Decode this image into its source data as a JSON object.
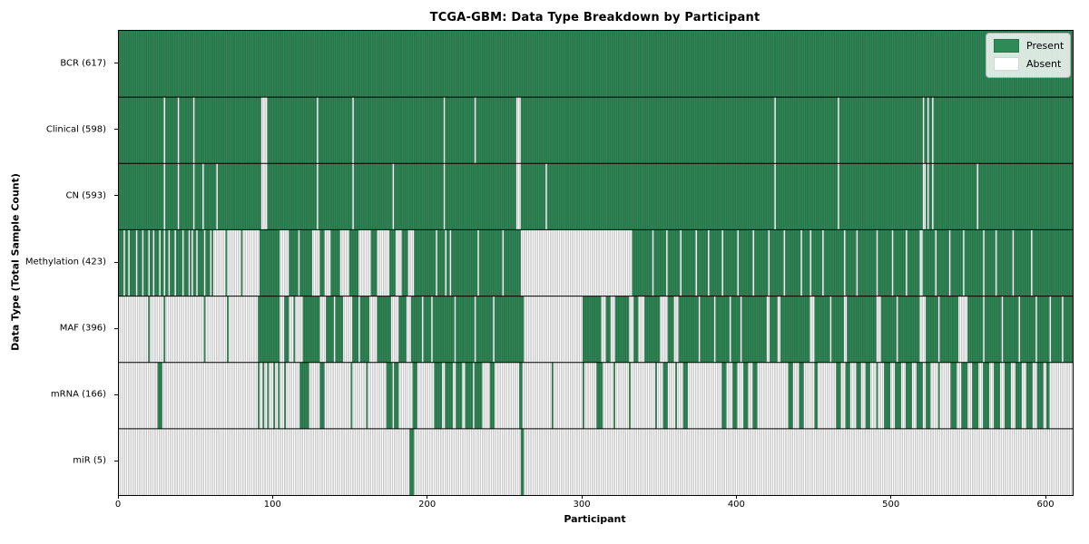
{
  "chart_data": {
    "type": "heatmap",
    "title": "TCGA-GBM: Data Type Breakdown by Participant",
    "xlabel": "Participant",
    "ylabel": "Data Type (Total Sample Count)",
    "x_ticks": [
      0,
      100,
      200,
      300,
      400,
      500,
      600
    ],
    "xlim": [
      0,
      617
    ],
    "n_participants": 617,
    "grid": false,
    "legend": {
      "position": "upper right",
      "present": "Present",
      "absent": "Absent"
    },
    "colors": {
      "present": "#2e8b57",
      "absent": "#ffffff",
      "bar_edge": "rgba(35,35,35,0.42)",
      "row_divider": "#000000",
      "frame": "#000000"
    },
    "rows": [
      {
        "data_type": "BCR",
        "count": 617,
        "label": "BCR (617)",
        "default": "present",
        "inverted_segments": []
      },
      {
        "data_type": "Clinical",
        "count": 598,
        "label": "Clinical (598)",
        "default": "present",
        "inverted_segments": [
          [
            29,
            30
          ],
          [
            38,
            39
          ],
          [
            48,
            49
          ],
          [
            92,
            96
          ],
          [
            128,
            129
          ],
          [
            151,
            152
          ],
          [
            210,
            211
          ],
          [
            230,
            231
          ],
          [
            257,
            260
          ],
          [
            424,
            425
          ],
          [
            465,
            466
          ],
          [
            520,
            521
          ],
          [
            523,
            524
          ],
          [
            526,
            527
          ]
        ]
      },
      {
        "data_type": "CN",
        "count": 593,
        "label": "CN (593)",
        "default": "present",
        "inverted_segments": [
          [
            29,
            30
          ],
          [
            38,
            39
          ],
          [
            48,
            49
          ],
          [
            54,
            55
          ],
          [
            63,
            64
          ],
          [
            92,
            96
          ],
          [
            128,
            129
          ],
          [
            151,
            152
          ],
          [
            177,
            178
          ],
          [
            210,
            211
          ],
          [
            257,
            260
          ],
          [
            276,
            277
          ],
          [
            424,
            425
          ],
          [
            465,
            466
          ],
          [
            520,
            522
          ],
          [
            523,
            524
          ],
          [
            526,
            527
          ],
          [
            555,
            556
          ]
        ]
      },
      {
        "data_type": "Methylation",
        "count": 423,
        "label": "Methylation (423)",
        "default": "present",
        "inverted_segments": [
          [
            3,
            4
          ],
          [
            6,
            7
          ],
          [
            11,
            12
          ],
          [
            15,
            16
          ],
          [
            19,
            20
          ],
          [
            22,
            23
          ],
          [
            26,
            27
          ],
          [
            29,
            30
          ],
          [
            32,
            33
          ],
          [
            36,
            37
          ],
          [
            41,
            42
          ],
          [
            45,
            46
          ],
          [
            47,
            48
          ],
          [
            50,
            51
          ],
          [
            55,
            56
          ],
          [
            59,
            60
          ],
          [
            61,
            69
          ],
          [
            70,
            79
          ],
          [
            80,
            91
          ],
          [
            104,
            110
          ],
          [
            116,
            117
          ],
          [
            125,
            130
          ],
          [
            133,
            137
          ],
          [
            143,
            149
          ],
          [
            155,
            163
          ],
          [
            167,
            175
          ],
          [
            179,
            183
          ],
          [
            187,
            191
          ],
          [
            205,
            206
          ],
          [
            211,
            212
          ],
          [
            214,
            215
          ],
          [
            232,
            233
          ],
          [
            248,
            249
          ],
          [
            260,
            332
          ],
          [
            345,
            346
          ],
          [
            354,
            355
          ],
          [
            363,
            364
          ],
          [
            373,
            374
          ],
          [
            381,
            382
          ],
          [
            390,
            391
          ],
          [
            400,
            401
          ],
          [
            410,
            411
          ],
          [
            420,
            421
          ],
          [
            430,
            431
          ],
          [
            441,
            442
          ],
          [
            447,
            448
          ],
          [
            455,
            456
          ],
          [
            469,
            470
          ],
          [
            477,
            478
          ],
          [
            490,
            491
          ],
          [
            500,
            501
          ],
          [
            509,
            510
          ],
          [
            518,
            520
          ],
          [
            528,
            529
          ],
          [
            537,
            538
          ],
          [
            546,
            547
          ],
          [
            559,
            560
          ],
          [
            567,
            568
          ],
          [
            578,
            579
          ],
          [
            590,
            591
          ]
        ]
      },
      {
        "data_type": "MAF",
        "count": 396,
        "label": "MAF (396)",
        "default": "present",
        "inverted_segments": [
          [
            0,
            19
          ],
          [
            20,
            29
          ],
          [
            30,
            55
          ],
          [
            56,
            70
          ],
          [
            71,
            90
          ],
          [
            104,
            107
          ],
          [
            110,
            113
          ],
          [
            114,
            119
          ],
          [
            130,
            134
          ],
          [
            139,
            140
          ],
          [
            145,
            151
          ],
          [
            155,
            156
          ],
          [
            162,
            167
          ],
          [
            176,
            181
          ],
          [
            186,
            189
          ],
          [
            196,
            197
          ],
          [
            202,
            203
          ],
          [
            217,
            218
          ],
          [
            230,
            231
          ],
          [
            242,
            243
          ],
          [
            262,
            300
          ],
          [
            312,
            315
          ],
          [
            318,
            321
          ],
          [
            330,
            333
          ],
          [
            336,
            340
          ],
          [
            350,
            355
          ],
          [
            359,
            362
          ],
          [
            375,
            376
          ],
          [
            385,
            386
          ],
          [
            395,
            396
          ],
          [
            402,
            403
          ],
          [
            419,
            421
          ],
          [
            426,
            428
          ],
          [
            447,
            450
          ],
          [
            460,
            461
          ],
          [
            469,
            471
          ],
          [
            490,
            493
          ],
          [
            503,
            504
          ],
          [
            518,
            522
          ],
          [
            530,
            531
          ],
          [
            543,
            549
          ],
          [
            559,
            560
          ],
          [
            571,
            572
          ],
          [
            582,
            583
          ],
          [
            593,
            594
          ],
          [
            602,
            603
          ],
          [
            610,
            611
          ]
        ]
      },
      {
        "data_type": "mRNA",
        "count": 166,
        "label": "mRNA (166)",
        "default": "absent",
        "inverted_segments": [
          [
            25,
            28
          ],
          [
            90,
            91
          ],
          [
            93,
            94
          ],
          [
            96,
            97
          ],
          [
            100,
            101
          ],
          [
            103,
            104
          ],
          [
            107,
            108
          ],
          [
            117,
            123
          ],
          [
            130,
            133
          ],
          [
            150,
            151
          ],
          [
            160,
            161
          ],
          [
            173,
            177
          ],
          [
            178,
            181
          ],
          [
            190,
            193
          ],
          [
            204,
            209
          ],
          [
            211,
            216
          ],
          [
            218,
            222
          ],
          [
            224,
            229
          ],
          [
            230,
            235
          ],
          [
            240,
            243
          ],
          [
            259,
            261
          ],
          [
            280,
            281
          ],
          [
            300,
            301
          ],
          [
            309,
            313
          ],
          [
            320,
            321
          ],
          [
            330,
            331
          ],
          [
            347,
            348
          ],
          [
            352,
            355
          ],
          [
            360,
            361
          ],
          [
            365,
            368
          ],
          [
            390,
            393
          ],
          [
            397,
            400
          ],
          [
            404,
            407
          ],
          [
            410,
            413
          ],
          [
            433,
            436
          ],
          [
            440,
            443
          ],
          [
            450,
            452
          ],
          [
            464,
            467
          ],
          [
            470,
            473
          ],
          [
            477,
            480
          ],
          [
            483,
            486
          ],
          [
            490,
            491
          ],
          [
            495,
            499
          ],
          [
            502,
            506
          ],
          [
            509,
            513
          ],
          [
            516,
            520
          ],
          [
            522,
            525
          ],
          [
            530,
            531
          ],
          [
            538,
            542
          ],
          [
            545,
            549
          ],
          [
            552,
            556
          ],
          [
            559,
            563
          ],
          [
            566,
            570
          ],
          [
            573,
            577
          ],
          [
            580,
            584
          ],
          [
            587,
            591
          ],
          [
            594,
            598
          ],
          [
            600,
            602
          ]
        ]
      },
      {
        "data_type": "miR",
        "count": 5,
        "label": "miR (5)",
        "default": "absent",
        "inverted_segments": [
          [
            188,
            191
          ],
          [
            260,
            262
          ]
        ]
      }
    ]
  }
}
